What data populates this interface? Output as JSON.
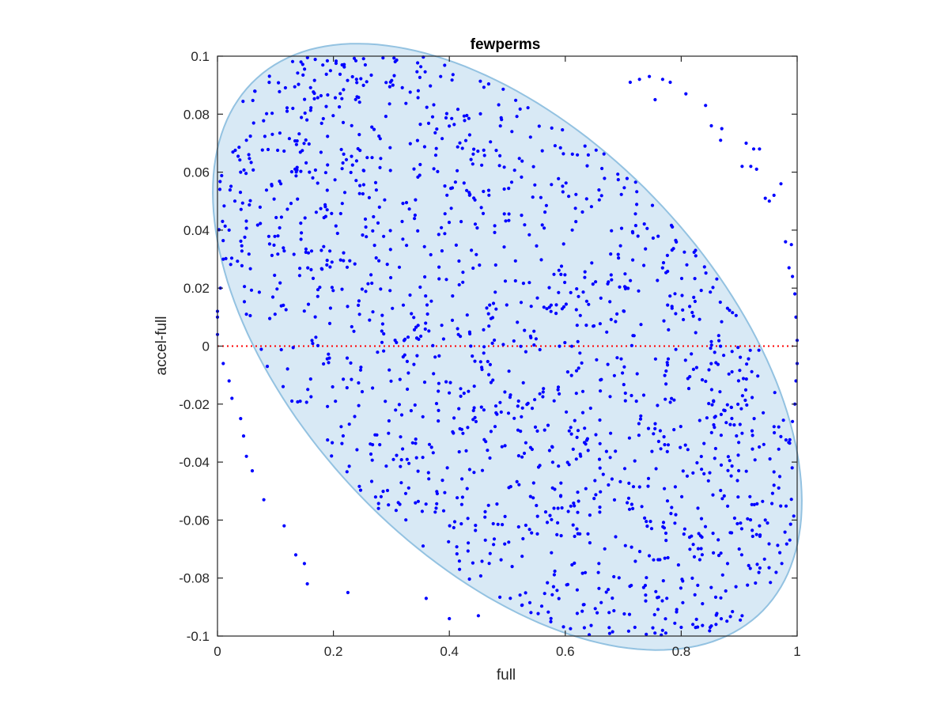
{
  "chart_data": {
    "type": "scatter",
    "title": "fewperms",
    "xlabel": "full",
    "ylabel": "accel-full",
    "xlim": [
      0,
      1
    ],
    "ylim": [
      -0.1,
      0.1
    ],
    "xticks": [
      "0",
      "0.2",
      "0.4",
      "0.6",
      "0.8",
      "1"
    ],
    "yticks": [
      "-0.1",
      "-0.08",
      "-0.06",
      "-0.04",
      "-0.02",
      "0",
      "0.02",
      "0.04",
      "0.06",
      "0.08",
      "0.1"
    ],
    "grid": false,
    "legend": "none",
    "reference_line": {
      "y": 0,
      "style": "dotted",
      "color": "#ff0000"
    },
    "region": {
      "shape": "tilted-ellipse",
      "left_point": [
        0,
        0.036
      ],
      "top_point": [
        0.41,
        0.098
      ],
      "right_point": [
        1,
        -0.037
      ],
      "bottom_point": [
        0.59,
        -0.098
      ],
      "fill_color": "#d8e9f5",
      "edge_color": "#93c2e1"
    },
    "marker_color": "#0000ff",
    "region_dot_count": 1500,
    "points": [
      [
        0.144,
        0.098
      ],
      [
        0.195,
        0.095
      ],
      [
        0.215,
        0.097
      ],
      [
        0.255,
        0.097
      ],
      [
        0.385,
        0.093
      ],
      [
        0.712,
        0.091
      ],
      [
        0.728,
        0.092
      ],
      [
        0.745,
        0.093
      ],
      [
        0.768,
        0.092
      ],
      [
        0.781,
        0.091
      ],
      [
        0.755,
        0.085
      ],
      [
        0.842,
        0.083
      ],
      [
        0.808,
        0.087
      ],
      [
        0.852,
        0.076
      ],
      [
        0.87,
        0.075
      ],
      [
        0.868,
        0.071
      ],
      [
        0.912,
        0.07
      ],
      [
        0.925,
        0.068
      ],
      [
        0.935,
        0.068
      ],
      [
        0.905,
        0.062
      ],
      [
        0.92,
        0.062
      ],
      [
        0.93,
        0.061
      ],
      [
        0.945,
        0.051
      ],
      [
        0.952,
        0.05
      ],
      [
        0.96,
        0.052
      ],
      [
        0.972,
        0.056
      ],
      [
        0.98,
        0.036
      ],
      [
        0.99,
        0.035
      ],
      [
        0.986,
        0.027
      ],
      [
        0.992,
        0.024
      ],
      [
        0.996,
        0.018
      ],
      [
        0.998,
        0.01
      ],
      [
        1.0,
        0.002
      ],
      [
        1.0,
        -0.006
      ],
      [
        0.998,
        -0.012
      ],
      [
        0.996,
        -0.02
      ],
      [
        0.992,
        -0.026
      ],
      [
        0.97,
        -0.045
      ],
      [
        0.96,
        -0.048
      ],
      [
        0.945,
        -0.06
      ],
      [
        0.935,
        -0.062
      ],
      [
        0.93,
        -0.065
      ],
      [
        0.9,
        -0.07
      ],
      [
        0.88,
        -0.075
      ],
      [
        0.905,
        -0.093
      ],
      [
        0.86,
        -0.096
      ],
      [
        0.85,
        -0.097
      ],
      [
        0.82,
        -0.096
      ],
      [
        0.8,
        -0.097
      ],
      [
        0.72,
        -0.097
      ],
      [
        0.4,
        -0.094
      ],
      [
        0.45,
        -0.093
      ],
      [
        0.36,
        -0.087
      ],
      [
        0.225,
        -0.085
      ],
      [
        0.155,
        -0.082
      ],
      [
        0.15,
        -0.075
      ],
      [
        0.135,
        -0.072
      ],
      [
        0.115,
        -0.062
      ],
      [
        0.08,
        -0.053
      ],
      [
        0.06,
        -0.043
      ],
      [
        0.05,
        -0.038
      ],
      [
        0.045,
        -0.031
      ],
      [
        0.04,
        -0.025
      ],
      [
        0.025,
        -0.018
      ],
      [
        0.02,
        -0.012
      ],
      [
        0.01,
        -0.006
      ],
      [
        0.0,
        0.004
      ],
      [
        0.0,
        0.01
      ],
      [
        0.0,
        0.012
      ],
      [
        0.005,
        0.02
      ],
      [
        0.01,
        0.03
      ],
      [
        0.02,
        0.04
      ],
      [
        0.03,
        0.05
      ],
      [
        0.04,
        0.06
      ],
      [
        0.05,
        0.071
      ],
      [
        0.12,
        0.081
      ],
      [
        0.13,
        0.082
      ]
    ]
  }
}
